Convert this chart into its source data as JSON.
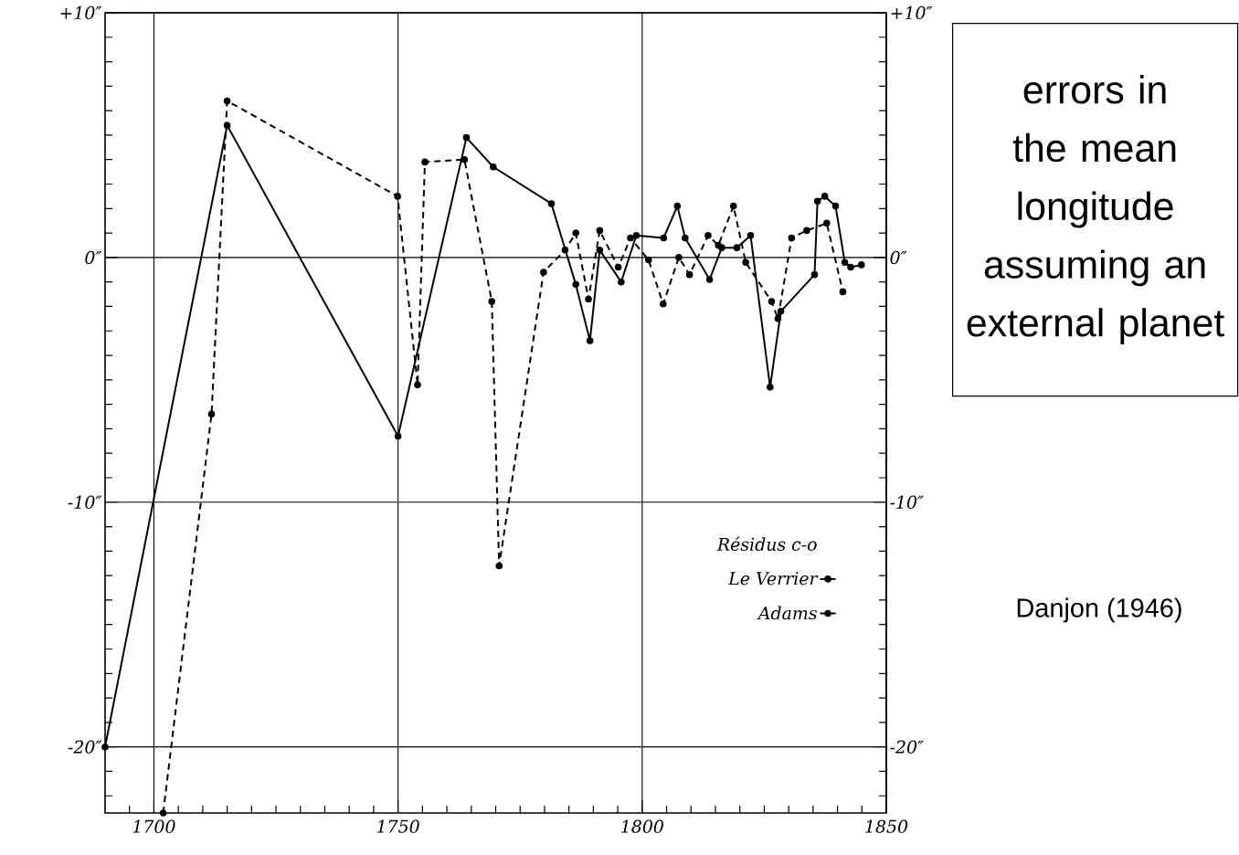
{
  "chart_data": {
    "type": "line",
    "legend_title": "*Résidus c-o*",
    "series": [
      {
        "name": "Le Verrier",
        "color": "#000000",
        "line_style": "solid",
        "marker": "circle",
        "x": [
          1690,
          1715,
          1750,
          1764,
          1769.5,
          1781.4,
          1786.4,
          1789.3,
          1791.3,
          1795.7,
          1798.8,
          1804.4,
          1807.2,
          1808.8,
          1813.8,
          1816.3,
          1819.4,
          1822.2,
          1826.2,
          1828.4,
          1835.3,
          1835.9,
          1837.4,
          1839.6,
          1841.5,
          1842.7,
          1844.9
        ],
        "values": [
          -20,
          5.4,
          -7.3,
          4.9,
          3.7,
          2.2,
          -1.1,
          -3.4,
          0.3,
          -1.0,
          0.9,
          0.8,
          2.1,
          0.8,
          -0.9,
          0.4,
          0.4,
          0.9,
          -5.3,
          -2.2,
          -0.7,
          2.3,
          2.5,
          2.1,
          -0.2,
          -0.4,
          -0.3
        ]
      },
      {
        "name": "Adams",
        "color": "#000000",
        "line_style": "dashed",
        "marker": "circle",
        "x": [
          1701.9,
          1711.8,
          1715,
          1749.9,
          1754,
          1755.5,
          1763.6,
          1769.2,
          1770.7,
          1779.8,
          1784.2,
          1786.4,
          1789,
          1791.3,
          1795.1,
          1797.6,
          1801.3,
          1804.3,
          1807.5,
          1809.7,
          1813.5,
          1815.6,
          1818.7,
          1821.2,
          1826.5,
          1827.8,
          1830.6,
          1833.7,
          1837.8,
          1841.1
        ],
        "values": [
          -22.7,
          -6.4,
          6.4,
          2.5,
          -5.2,
          3.9,
          4.0,
          -1.8,
          -12.6,
          -0.6,
          0.3,
          1.0,
          -1.7,
          1.1,
          -0.4,
          0.8,
          -0.1,
          -1.9,
          0.0,
          -0.7,
          0.9,
          0.5,
          2.1,
          -0.2,
          -1.8,
          -2.5,
          0.8,
          1.1,
          1.4,
          -1.4
        ]
      }
    ],
    "xlim": [
      1690,
      1850
    ],
    "xticks": [
      {
        "value": 1695,
        "label": null
      },
      1700,
      {
        "value": 1705,
        "label": null
      },
      {
        "value": 1710,
        "label": null
      },
      {
        "value": 1715,
        "label": null
      },
      {
        "value": 1720,
        "label": null
      },
      {
        "value": 1725,
        "label": null
      },
      {
        "value": 1730,
        "label": null
      },
      {
        "value": 1735,
        "label": null
      },
      {
        "value": 1740,
        "label": null
      },
      {
        "value": 1745,
        "label": null
      },
      1750,
      {
        "value": 1755,
        "label": null
      },
      {
        "value": 1760,
        "label": null
      },
      {
        "value": 1765,
        "label": null
      },
      {
        "value": 1770,
        "label": null
      },
      {
        "value": 1775,
        "label": null
      },
      {
        "value": 1780,
        "label": null
      },
      {
        "value": 1785,
        "label": null
      },
      {
        "value": 1790,
        "label": null
      },
      {
        "value": 1795,
        "label": null
      },
      1800,
      {
        "value": 1805,
        "label": null
      },
      {
        "value": 1810,
        "label": null
      },
      {
        "value": 1815,
        "label": null
      },
      {
        "value": 1820,
        "label": null
      },
      {
        "value": 1825,
        "label": null
      },
      {
        "value": 1830,
        "label": null
      },
      {
        "value": 1835,
        "label": null
      },
      {
        "value": 1840,
        "label": null
      },
      {
        "value": 1845,
        "label": null
      },
      1850
    ],
    "ylim": [
      -22.7,
      10
    ],
    "yticks": [
      {
        "value": -22,
        "label": null
      },
      {
        "value": -21,
        "label": null
      },
      {
        "value": -20,
        "label": "-20″"
      },
      {
        "value": -19,
        "label": null
      },
      {
        "value": -18,
        "label": null
      },
      {
        "value": -17,
        "label": null
      },
      {
        "value": -16,
        "label": null
      },
      {
        "value": -15,
        "label": null
      },
      {
        "value": -14,
        "label": null
      },
      {
        "value": -13,
        "label": null
      },
      {
        "value": -12,
        "label": null
      },
      {
        "value": -11,
        "label": null
      },
      {
        "value": -10,
        "label": "-10″"
      },
      {
        "value": -9,
        "label": null
      },
      {
        "value": -8,
        "label": null
      },
      {
        "value": -7,
        "label": null
      },
      {
        "value": -6,
        "label": null
      },
      {
        "value": -5,
        "label": null
      },
      {
        "value": -4,
        "label": null
      },
      {
        "value": -3,
        "label": null
      },
      {
        "value": -2,
        "label": null
      },
      {
        "value": -1,
        "label": null
      },
      {
        "value": 0,
        "label": "0″"
      },
      {
        "value": 1,
        "label": null
      },
      {
        "value": 2,
        "label": null
      },
      {
        "value": 3,
        "label": null
      },
      {
        "value": 4,
        "label": null
      },
      {
        "value": 5,
        "label": null
      },
      {
        "value": 6,
        "label": null
      },
      {
        "value": 7,
        "label": null
      },
      {
        "value": 8,
        "label": null
      },
      {
        "value": 9,
        "label": null
      },
      {
        "value": 10,
        "label": "+10″"
      }
    ],
    "y2lim": [
      -22.7,
      10
    ],
    "y2ticks": [
      {
        "value": -22,
        "label": null
      },
      {
        "value": -21,
        "label": null
      },
      {
        "value": -20,
        "label": "-20″"
      },
      {
        "value": -19,
        "label": null
      },
      {
        "value": -18,
        "label": null
      },
      {
        "value": -17,
        "label": null
      },
      {
        "value": -16,
        "label": null
      },
      {
        "value": -15,
        "label": null
      },
      {
        "value": -14,
        "label": null
      },
      {
        "value": -13,
        "label": null
      },
      {
        "value": -12,
        "label": null
      },
      {
        "value": -11,
        "label": null
      },
      {
        "value": -10,
        "label": "-10″"
      },
      {
        "value": -9,
        "label": null
      },
      {
        "value": -8,
        "label": null
      },
      {
        "value": -7,
        "label": null
      },
      {
        "value": -6,
        "label": null
      },
      {
        "value": -5,
        "label": null
      },
      {
        "value": -4,
        "label": null
      },
      {
        "value": -3,
        "label": null
      },
      {
        "value": -2,
        "label": null
      },
      {
        "value": -1,
        "label": null
      },
      {
        "value": 0,
        "label": "0″"
      },
      {
        "value": 1,
        "label": null
      },
      {
        "value": 2,
        "label": null
      },
      {
        "value": 3,
        "label": null
      },
      {
        "value": 4,
        "label": null
      },
      {
        "value": 5,
        "label": null
      },
      {
        "value": 6,
        "label": null
      },
      {
        "value": 7,
        "label": null
      },
      {
        "value": 8,
        "label": null
      },
      {
        "value": 9,
        "label": null
      },
      {
        "value": 10,
        "label": "+10″"
      }
    ],
    "grid": true,
    "legend": "right",
    "annotations": [
      "errors in the mean longitude assuming an external planet",
      "Danjon (1946)"
    ]
  }
}
